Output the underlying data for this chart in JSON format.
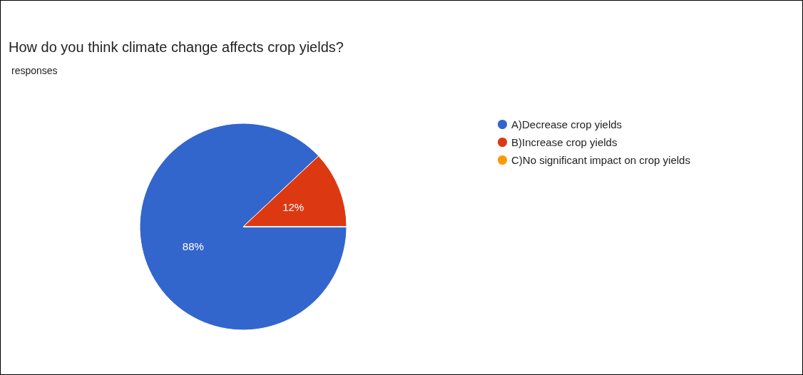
{
  "chart_data": {
    "type": "pie",
    "title": "How do you think climate change affects crop yields?",
    "subtitle": "responses",
    "categories": [
      "A)Decrease crop yields",
      "B)Increase crop yields",
      "C)No significant impact on crop yields"
    ],
    "values": [
      88,
      12,
      0
    ],
    "colors": [
      "#3366cc",
      "#dc3912",
      "#ff9900"
    ],
    "value_labels": [
      "88%",
      "12%",
      null
    ],
    "legend": "right"
  }
}
